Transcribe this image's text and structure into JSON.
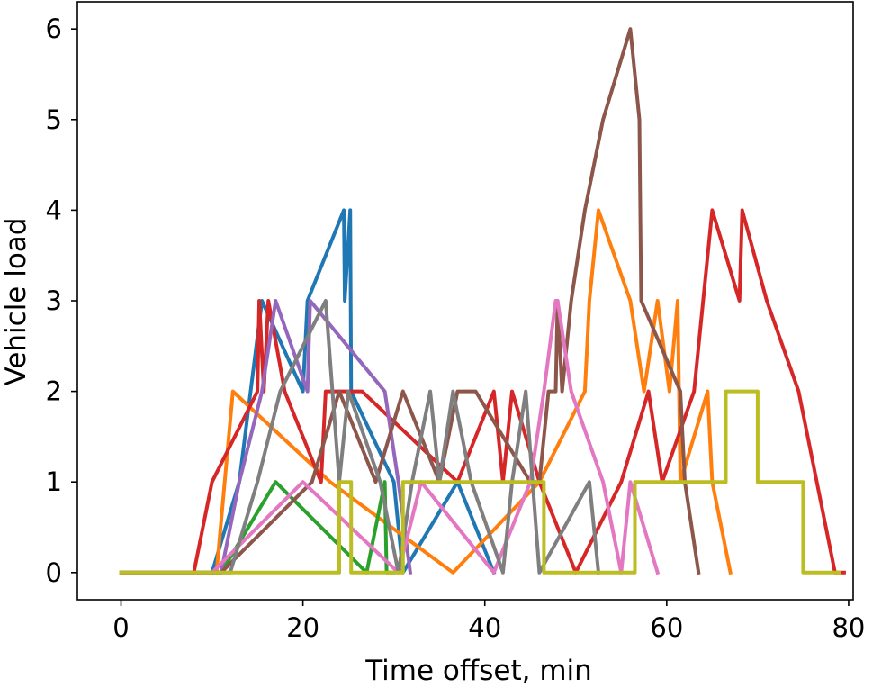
{
  "chart_data": {
    "type": "line",
    "title": "",
    "xlabel": "Time offset, min",
    "ylabel": "Vehicle load",
    "xlim": [
      -4.8,
      80.5
    ],
    "ylim": [
      -0.3,
      6.3
    ],
    "xticks": [
      0,
      20,
      40,
      60,
      80
    ],
    "yticks": [
      0,
      1,
      2,
      3,
      4,
      5,
      6
    ],
    "grid": false,
    "legend": "none",
    "series": [
      {
        "color": "#1f77b4",
        "points": [
          [
            0,
            0
          ],
          [
            10,
            0
          ],
          [
            13,
            1
          ],
          [
            15.5,
            3
          ],
          [
            20,
            2
          ],
          [
            20.5,
            3
          ],
          [
            24.5,
            4
          ],
          [
            24.6,
            3
          ],
          [
            25.2,
            4
          ],
          [
            25.3,
            2
          ],
          [
            30,
            1
          ],
          [
            31,
            0
          ],
          [
            37,
            1
          ],
          [
            41,
            0
          ]
        ]
      },
      {
        "color": "#ff7f0e",
        "points": [
          [
            0,
            0
          ],
          [
            10.5,
            0
          ],
          [
            12.3,
            2
          ],
          [
            23,
            1
          ],
          [
            36.5,
            0
          ],
          [
            46,
            1
          ],
          [
            51,
            2
          ],
          [
            51.5,
            3
          ],
          [
            52.5,
            4
          ],
          [
            56,
            3
          ],
          [
            57.5,
            2
          ],
          [
            59,
            3
          ],
          [
            60.3,
            2
          ],
          [
            61.2,
            3
          ],
          [
            61.5,
            1
          ],
          [
            64.5,
            2
          ],
          [
            65,
            1
          ],
          [
            67,
            0
          ]
        ]
      },
      {
        "color": "#2ca02c",
        "points": [
          [
            0,
            0
          ],
          [
            11,
            0
          ],
          [
            17,
            1
          ],
          [
            27,
            0
          ],
          [
            29,
            1
          ],
          [
            29.2,
            0
          ],
          [
            30,
            0
          ]
        ]
      },
      {
        "color": "#d62728",
        "points": [
          [
            0,
            0
          ],
          [
            8,
            0
          ],
          [
            10,
            1
          ],
          [
            15,
            2
          ],
          [
            15.2,
            3
          ],
          [
            15.7,
            2
          ],
          [
            16.2,
            3
          ],
          [
            18,
            2
          ],
          [
            22,
            1
          ],
          [
            22.5,
            2
          ],
          [
            26.5,
            2
          ],
          [
            37,
            1
          ],
          [
            41,
            2
          ],
          [
            42,
            1
          ],
          [
            43,
            2
          ],
          [
            46,
            1
          ],
          [
            50,
            0
          ],
          [
            55,
            1
          ],
          [
            58,
            2
          ],
          [
            59.5,
            1
          ],
          [
            63,
            2
          ],
          [
            64,
            3
          ],
          [
            65,
            4
          ],
          [
            68,
            3
          ],
          [
            68.3,
            4
          ],
          [
            71,
            3
          ],
          [
            74.5,
            2
          ],
          [
            78.5,
            0
          ],
          [
            79.5,
            0
          ]
        ]
      },
      {
        "color": "#9467bd",
        "points": [
          [
            0,
            0
          ],
          [
            11,
            0
          ],
          [
            13,
            1
          ],
          [
            15.5,
            2
          ],
          [
            17,
            3
          ],
          [
            20.5,
            2
          ],
          [
            20.8,
            3
          ],
          [
            29,
            2
          ],
          [
            30.5,
            1
          ],
          [
            31.8,
            0
          ]
        ]
      },
      {
        "color": "#8c564b",
        "points": [
          [
            0,
            0
          ],
          [
            11,
            0
          ],
          [
            21,
            1
          ],
          [
            24,
            2
          ],
          [
            28,
            1
          ],
          [
            31,
            2
          ],
          [
            35,
            1
          ],
          [
            37,
            2
          ],
          [
            39,
            2
          ],
          [
            45,
            1
          ],
          [
            46,
            1
          ],
          [
            47,
            2
          ],
          [
            47.8,
            2
          ],
          [
            48,
            3
          ],
          [
            48.5,
            2
          ],
          [
            49.5,
            3
          ],
          [
            51,
            4
          ],
          [
            53,
            5
          ],
          [
            56,
            6
          ],
          [
            57,
            5
          ],
          [
            57.2,
            3
          ],
          [
            61.5,
            2
          ],
          [
            62,
            1
          ],
          [
            63.5,
            0
          ]
        ]
      },
      {
        "color": "#e377c2",
        "points": [
          [
            0,
            0
          ],
          [
            10,
            0
          ],
          [
            20,
            1
          ],
          [
            30.5,
            0
          ],
          [
            33,
            1
          ],
          [
            41,
            0
          ],
          [
            45,
            1
          ],
          [
            46.5,
            2
          ],
          [
            47.8,
            3
          ],
          [
            48,
            3
          ],
          [
            49.5,
            2
          ],
          [
            53,
            1
          ],
          [
            55,
            0
          ],
          [
            56,
            1
          ],
          [
            59,
            0
          ]
        ]
      },
      {
        "color": "#7f7f7f",
        "points": [
          [
            0,
            0
          ],
          [
            12,
            0
          ],
          [
            15,
            1
          ],
          [
            17.5,
            2
          ],
          [
            22.5,
            3
          ],
          [
            24,
            1
          ],
          [
            25,
            2
          ],
          [
            28.5,
            1
          ],
          [
            30.5,
            0
          ],
          [
            32,
            1
          ],
          [
            34,
            2
          ],
          [
            35,
            1
          ],
          [
            36.5,
            2
          ],
          [
            38.5,
            1
          ],
          [
            42,
            0
          ],
          [
            43,
            1
          ],
          [
            44.5,
            2
          ],
          [
            46,
            0
          ],
          [
            51.5,
            1
          ],
          [
            52.5,
            0
          ]
        ]
      },
      {
        "color": "#bcbd22",
        "points": [
          [
            0,
            0
          ],
          [
            24,
            0
          ],
          [
            24,
            1
          ],
          [
            25.3,
            1
          ],
          [
            25.3,
            0
          ],
          [
            31,
            0
          ],
          [
            31,
            1
          ],
          [
            46.5,
            1
          ],
          [
            46.5,
            0
          ],
          [
            56.5,
            0
          ],
          [
            56.5,
            1
          ],
          [
            66.5,
            1
          ],
          [
            66.5,
            2
          ],
          [
            70,
            2
          ],
          [
            70,
            1
          ],
          [
            75,
            1
          ],
          [
            75,
            0
          ],
          [
            79,
            0
          ]
        ]
      }
    ]
  }
}
